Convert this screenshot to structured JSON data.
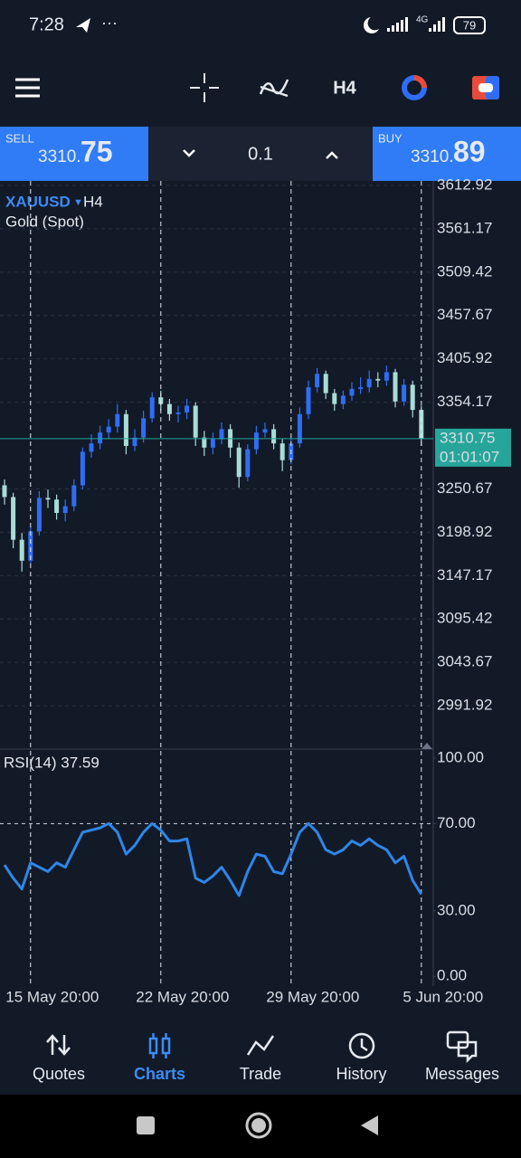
{
  "status_bar": {
    "time": "7:28",
    "network": "4G",
    "battery": "79"
  },
  "toolbar": {
    "timeframe": "H4"
  },
  "trade_bar": {
    "sell": {
      "label": "SELL",
      "price_prefix": "3310.",
      "price_suffix": "75"
    },
    "volume": "0.1",
    "buy": {
      "label": "BUY",
      "price_prefix": "3310.",
      "price_suffix": "89"
    }
  },
  "chart_data": [
    {
      "type": "candlestick",
      "symbol": "XAUUSD",
      "timeframe": "H4",
      "subtitle": "Gold (Spot)",
      "open": [
        3255,
        3241,
        3190,
        3165,
        3200,
        3240,
        3238,
        3222,
        3230,
        3255,
        3295,
        3305,
        3318,
        3325,
        3340,
        3302,
        3312,
        3335,
        3360,
        3352,
        3340,
        3342,
        3350,
        3312,
        3300,
        3310,
        3322,
        3300,
        3265,
        3298,
        3318,
        3322,
        3305,
        3285,
        3305,
        3340,
        3372,
        3388,
        3365,
        3352,
        3362,
        3370,
        3372,
        3382,
        3380,
        3390,
        3355,
        3375,
        3345
      ],
      "high": [
        3262,
        3246,
        3198,
        3206,
        3248,
        3250,
        3244,
        3238,
        3262,
        3300,
        3316,
        3326,
        3334,
        3352,
        3345,
        3322,
        3344,
        3366,
        3368,
        3358,
        3350,
        3358,
        3354,
        3320,
        3318,
        3330,
        3328,
        3306,
        3304,
        3326,
        3330,
        3328,
        3310,
        3312,
        3348,
        3380,
        3395,
        3392,
        3370,
        3368,
        3378,
        3384,
        3392,
        3390,
        3398,
        3394,
        3382,
        3380,
        3350
      ],
      "low": [
        3232,
        3180,
        3152,
        3160,
        3195,
        3228,
        3214,
        3212,
        3224,
        3250,
        3288,
        3298,
        3310,
        3318,
        3292,
        3296,
        3306,
        3330,
        3344,
        3332,
        3330,
        3334,
        3302,
        3290,
        3292,
        3304,
        3288,
        3252,
        3260,
        3292,
        3312,
        3298,
        3272,
        3280,
        3300,
        3334,
        3366,
        3358,
        3344,
        3346,
        3356,
        3364,
        3366,
        3372,
        3374,
        3348,
        3350,
        3336,
        3302
      ],
      "close": [
        3241,
        3190,
        3165,
        3200,
        3240,
        3238,
        3222,
        3230,
        3255,
        3295,
        3305,
        3318,
        3325,
        3340,
        3302,
        3312,
        3335,
        3360,
        3352,
        3340,
        3342,
        3350,
        3312,
        3300,
        3310,
        3322,
        3300,
        3265,
        3298,
        3318,
        3322,
        3305,
        3285,
        3305,
        3340,
        3372,
        3388,
        3365,
        3352,
        3362,
        3370,
        3372,
        3382,
        3380,
        3390,
        3355,
        3375,
        3345,
        3310.75
      ],
      "up_color": "#2f6df5",
      "down_color": "#a9dcd6",
      "last_price_color": "#26a69a",
      "timer": "01:01:07",
      "ylim": [
        2940.17,
        3618.3
      ],
      "yticks": [
        2991.92,
        3043.67,
        3095.42,
        3147.17,
        3198.92,
        3250.67,
        3354.17,
        3405.92,
        3457.67,
        3509.42,
        3561.17,
        3612.92
      ],
      "grid": true
    },
    {
      "type": "line",
      "title": "RSI(14) 37.59",
      "categories": [
        null,
        null,
        null,
        "15 May 20:00",
        null,
        null,
        null,
        null,
        null,
        null,
        null,
        null,
        null,
        null,
        null,
        null,
        null,
        null,
        "22 May 20:00",
        null,
        null,
        null,
        null,
        null,
        null,
        null,
        null,
        null,
        null,
        null,
        null,
        null,
        null,
        "29 May 20:00",
        null,
        null,
        null,
        null,
        null,
        null,
        null,
        null,
        null,
        null,
        null,
        null,
        null,
        null,
        "5 Jun 20:00"
      ],
      "values": [
        51,
        45,
        40,
        52,
        50,
        48,
        52,
        50,
        58,
        66,
        67,
        68,
        70,
        66,
        56,
        60,
        66,
        70,
        67,
        62,
        62,
        63,
        45,
        43,
        46,
        50,
        44,
        37,
        48,
        56,
        55,
        48,
        47,
        56,
        66,
        70,
        66,
        58,
        56,
        58,
        62,
        60,
        63,
        60,
        58,
        52,
        55,
        44,
        37.59
      ],
      "color": "#2f86e8",
      "ylim": [
        -4.5,
        103.3
      ],
      "yticks": [
        {
          "value": 0,
          "label": "0.00"
        },
        {
          "value": 30,
          "label": "30.00"
        },
        {
          "value": 70,
          "label": "70.00"
        },
        {
          "value": 100,
          "label": "100.00"
        }
      ],
      "levels": [
        70
      ]
    }
  ],
  "nav": [
    "Quotes",
    "Charts",
    "Trade",
    "History",
    "Messages"
  ]
}
